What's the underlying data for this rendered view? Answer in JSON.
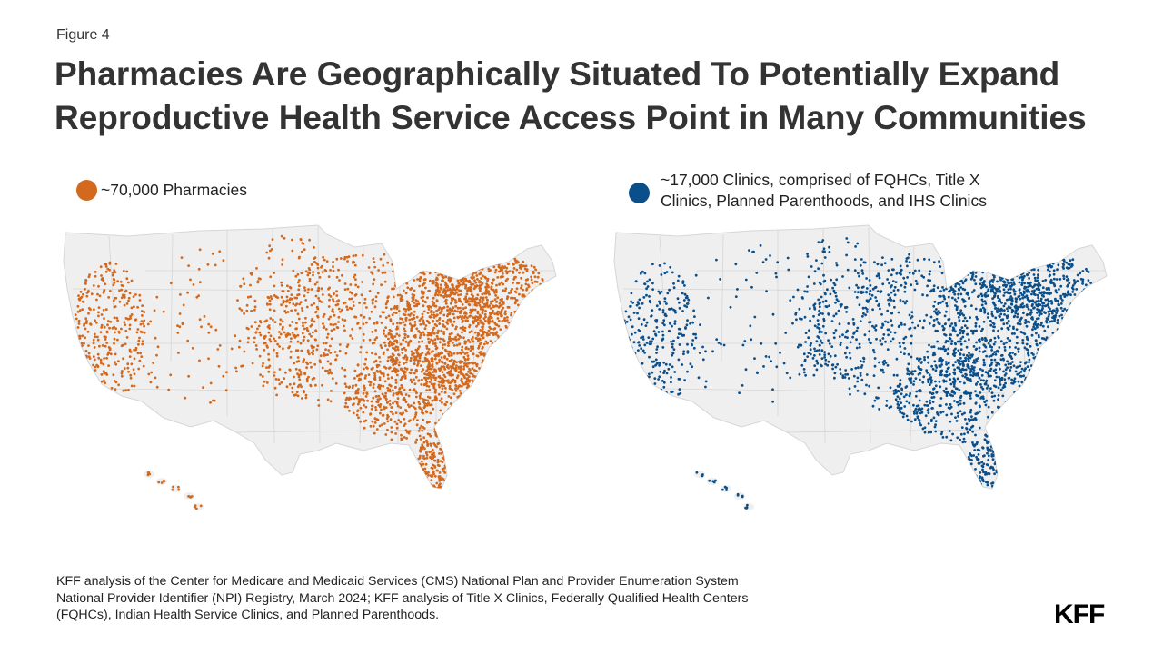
{
  "figure_label": "Figure 4",
  "title_lines": [
    "Pharmacies Are Geographically Situated To Potentially Expand",
    "Reproductive Health Service Access Point in Many Communities"
  ],
  "legend_left": {
    "lines": [
      "~70,000 Pharmacies"
    ],
    "color": "#D2691E"
  },
  "legend_right": {
    "lines": [
      "~17,000 Clinics, comprised of FQHCs, Title X",
      "Clinics, Planned Parenthoods, and IHS Clinics"
    ],
    "color": "#0B4F8A"
  },
  "source_lines": [
    "KFF analysis of the Center for Medicare and Medicaid Services (CMS) National Plan and Provider Enumeration System",
    "National Provider Identifier (NPI) Registry, March 2024; KFF analysis of Title X Clinics, Federally Qualified Health Centers",
    "(FQHCs), Indian Health Service Clinics, and Planned Parenthoods."
  ],
  "logo": "KFF",
  "colors": {
    "land": "#EFEFEF",
    "state_border": "#D6D6D6"
  }
}
